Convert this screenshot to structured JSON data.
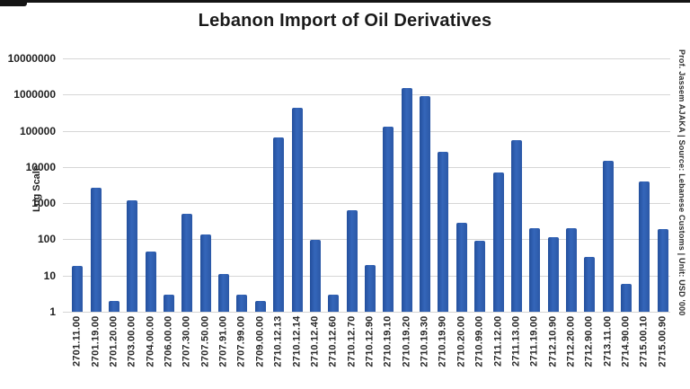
{
  "chart_data": {
    "type": "bar",
    "title": "Lebanon Import of Oil Derivatives",
    "ylabel": "Log Scale",
    "right_note": "Prof. Jassem AJAKA | Source: Lebanese Customs | Unit: USD '000",
    "scale": "log10",
    "ylim": [
      1,
      10000000
    ],
    "grid": "horizontal",
    "legend": "none",
    "ytick_labels": [
      "10000000",
      "1000000",
      "100000",
      "10000",
      "1000",
      "100",
      "10",
      "1"
    ],
    "categories": [
      "2701.11.00",
      "2701.19.00",
      "2701.20.00",
      "2703.00.00",
      "2704.00.00",
      "2706.00.00",
      "2707.30.00",
      "2707.50.00",
      "2707.91.00",
      "2707.99.00",
      "2709.00.00",
      "2710.12.13",
      "2710.12.14",
      "2710.12.40",
      "2710.12.60",
      "2710.12.70",
      "2710.12.90",
      "2710.19.10",
      "2710.19.20",
      "2710.19.30",
      "2710.19.90",
      "2710.20.00",
      "2710.99.00",
      "2711.12.00",
      "2711.13.00",
      "2711.19.00",
      "2712.10.90",
      "2712.20.00",
      "2712.90.00",
      "2713.11.00",
      "2714.90.00",
      "2715.00.10",
      "2715.00.90"
    ],
    "values": [
      18,
      2700,
      2,
      1200,
      45,
      3,
      500,
      140,
      11,
      3,
      2,
      65000,
      430000,
      95,
      3,
      650,
      19,
      130000,
      1500000,
      900000,
      26000,
      290,
      90,
      7000,
      55000,
      200,
      115,
      200,
      32,
      15000,
      6,
      4000,
      190
    ],
    "bar_color": "#2b58a6",
    "grid_color": "#d6d6d6",
    "title_color": "#1a1a1a"
  }
}
